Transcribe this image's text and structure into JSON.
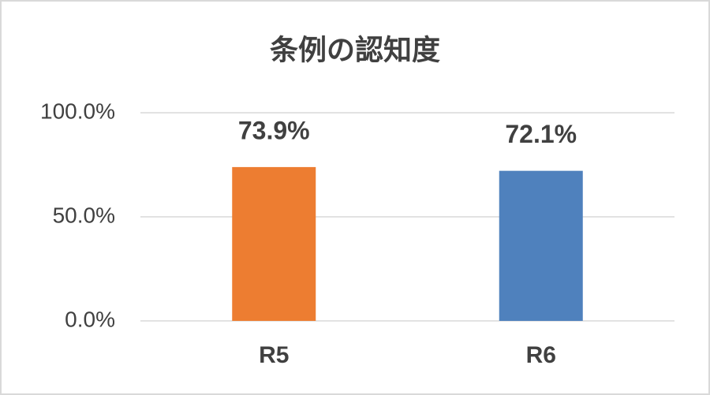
{
  "chart_data": {
    "type": "bar",
    "title": "条例の認知度",
    "categories": [
      "R5",
      "R6"
    ],
    "values": [
      73.9,
      72.1
    ],
    "value_labels": [
      "73.9%",
      "72.1%"
    ],
    "colors": [
      "#ed7d31",
      "#4f81bd"
    ],
    "ylim": [
      0,
      100
    ],
    "yticks": [
      {
        "value": 0,
        "label": "0.0%"
      },
      {
        "value": 50,
        "label": "50.0%"
      },
      {
        "value": 100,
        "label": "100.0%"
      }
    ],
    "grid": true
  }
}
